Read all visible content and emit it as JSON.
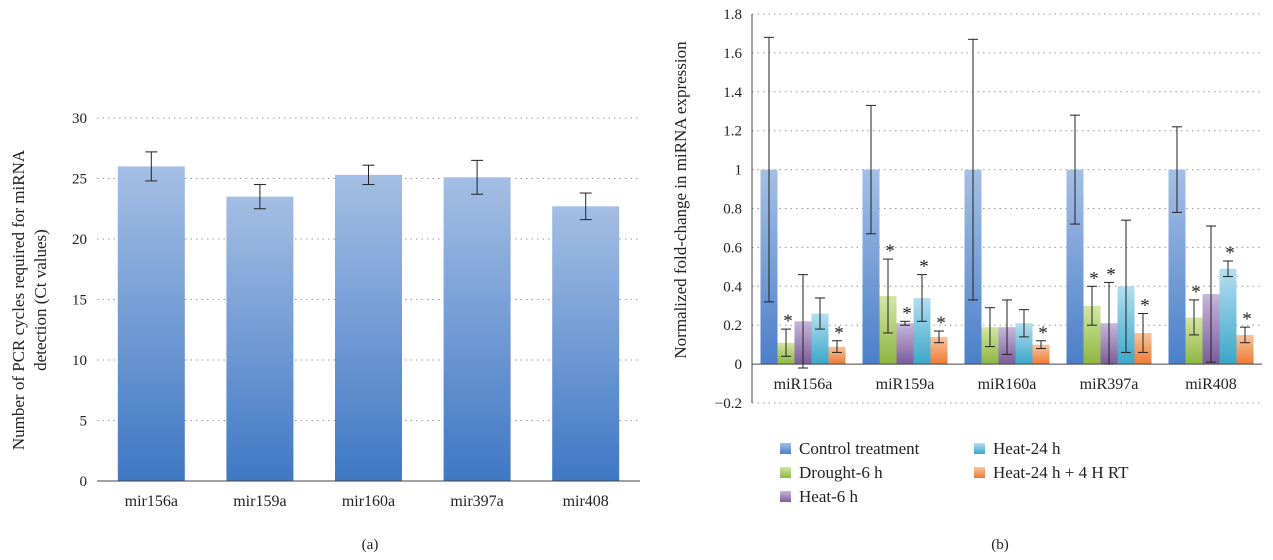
{
  "panels": [
    {
      "caption": "(a)",
      "chart_data": {
        "type": "bar",
        "categories": [
          "mir156a",
          "mir159a",
          "mir160a",
          "mir397a",
          "mir408"
        ],
        "values": [
          26.0,
          23.5,
          25.3,
          25.1,
          22.7
        ],
        "errors": [
          1.2,
          1.0,
          0.8,
          1.4,
          1.1
        ],
        "ylabel_lines": [
          "Number of PCR cycles required for miRNA",
          "detection (Ct values)"
        ],
        "ylim": [
          0,
          30
        ],
        "yticks": [
          0,
          5,
          10,
          15,
          20,
          25,
          30
        ],
        "grid": true,
        "bar_gradient": [
          "#a4bee4",
          "#3f78c4"
        ]
      }
    },
    {
      "caption": "(b)",
      "chart_data": {
        "type": "bar",
        "categories": [
          "miR156a",
          "miR159a",
          "miR160a",
          "miR397a",
          "miR408"
        ],
        "ylabel": "Normalized fold-change in miRNA expression",
        "ylim": [
          -0.2,
          1.8
        ],
        "yticks": [
          "−0.2",
          "0",
          "0.2",
          "0.4",
          "0.6",
          "0.8",
          "1",
          "1.2",
          "1.4",
          "1.6",
          "1.8"
        ],
        "ytick_values": [
          -0.2,
          0,
          0.2,
          0.4,
          0.6,
          0.8,
          1,
          1.2,
          1.4,
          1.6,
          1.8
        ],
        "grid": true,
        "legend_position": "bottom",
        "series": [
          {
            "name": "Control treatment",
            "color": "#4a7fc8",
            "light": "#a5bfe5",
            "values": [
              1,
              1,
              1,
              1,
              1
            ],
            "errors": [
              0.68,
              0.33,
              0.67,
              0.28,
              0.22
            ],
            "sig": [
              false,
              false,
              false,
              false,
              false
            ]
          },
          {
            "name": "Drought-6 h",
            "color": "#8db640",
            "light": "#d3e6a3",
            "values": [
              0.11,
              0.35,
              0.19,
              0.3,
              0.24
            ],
            "errors": [
              0.07,
              0.19,
              0.1,
              0.1,
              0.09
            ],
            "sig": [
              true,
              true,
              false,
              true,
              true
            ]
          },
          {
            "name": "Heat-6 h",
            "color": "#7a5c9a",
            "light": "#c7b6dc",
            "values": [
              0.22,
              0.21,
              0.19,
              0.21,
              0.36
            ],
            "errors": [
              0.24,
              0.01,
              0.14,
              0.21,
              0.35
            ],
            "sig": [
              false,
              true,
              false,
              true,
              false
            ]
          },
          {
            "name": "Heat-24 h",
            "color": "#3aa7c9",
            "light": "#b4def0",
            "values": [
              0.26,
              0.34,
              0.21,
              0.4,
              0.49
            ],
            "errors": [
              0.08,
              0.12,
              0.07,
              0.34,
              0.04
            ],
            "sig": [
              false,
              true,
              false,
              false,
              true
            ]
          },
          {
            "name": "Heat-24 h + 4 H RT",
            "color": "#ee7a35",
            "light": "#f8c59d",
            "values": [
              0.09,
              0.14,
              0.1,
              0.16,
              0.15
            ],
            "errors": [
              0.03,
              0.03,
              0.02,
              0.1,
              0.04
            ],
            "sig": [
              true,
              true,
              true,
              true,
              true
            ]
          }
        ]
      }
    }
  ],
  "significance_marker": "*"
}
